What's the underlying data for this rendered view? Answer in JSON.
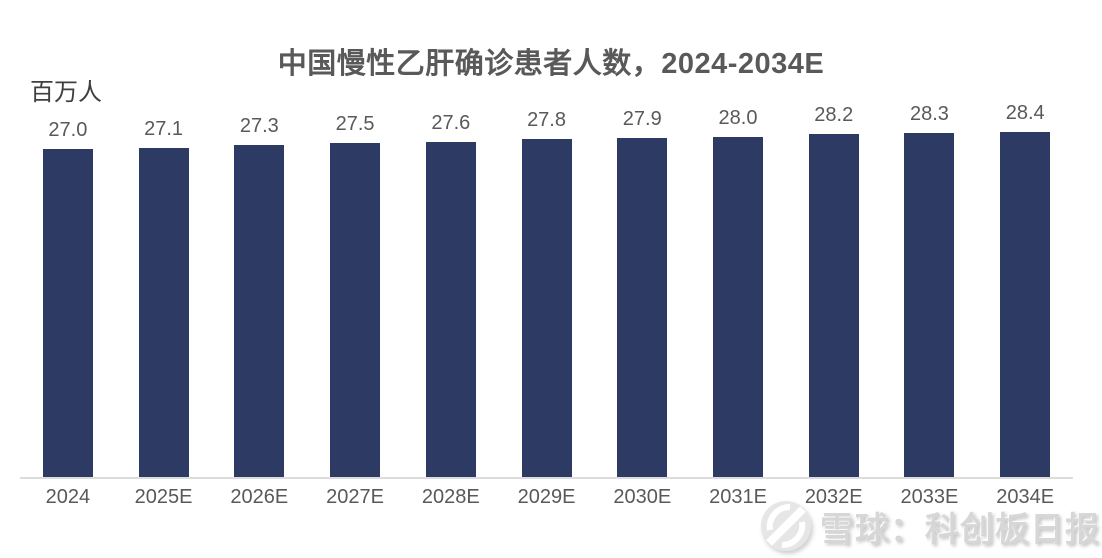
{
  "chart_data": {
    "type": "bar",
    "title": "中国慢性乙肝确诊患者人数，2024-2034E",
    "unit_label": "百万人",
    "xlabel": "",
    "ylabel": "百万人",
    "categories": [
      "2024",
      "2025E",
      "2026E",
      "2027E",
      "2028E",
      "2029E",
      "2030E",
      "2031E",
      "2032E",
      "2033E",
      "2034E"
    ],
    "values": [
      27.0,
      27.1,
      27.3,
      27.5,
      27.6,
      27.8,
      27.9,
      28.0,
      28.2,
      28.3,
      28.4
    ],
    "value_labels": [
      "27.0",
      "27.1",
      "27.3",
      "27.5",
      "27.6",
      "27.8",
      "27.9",
      "28.0",
      "28.2",
      "28.3",
      "28.4"
    ],
    "ylim": [
      0,
      31
    ],
    "grid": false,
    "data_labels": true,
    "legend": "none",
    "bar_color": "#2C3A64",
    "label_color": "#595959",
    "axis_line_color": "#dcdcdc"
  },
  "watermark": {
    "text": "雪球：科创板日报",
    "logo": "xueqiu-logo"
  }
}
